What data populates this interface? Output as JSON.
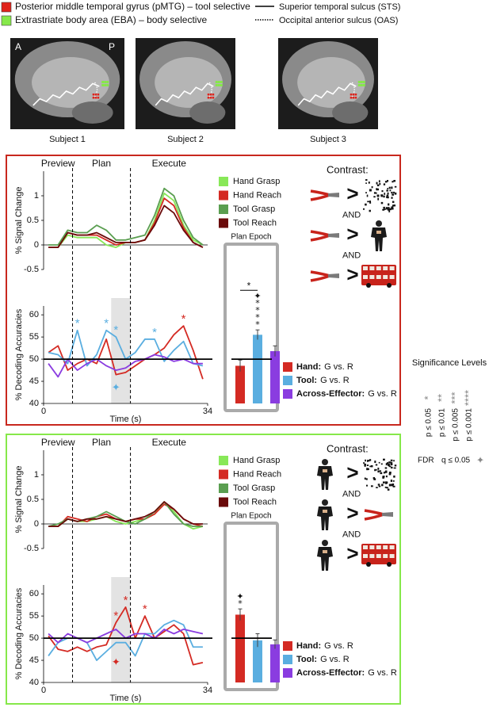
{
  "legend": {
    "regions": [
      {
        "label": "Posterior middle temporal gyrus (pMTG) – tool selective",
        "color": "#e0231b"
      },
      {
        "label": "Extrastriate body area (EBA) – body selective",
        "color": "#86e84a"
      }
    ],
    "sulci": [
      {
        "label": "Superior temporal sulcus (STS)",
        "style": "solid"
      },
      {
        "label": "Occipital anterior sulcus (OAS)",
        "style": "dotted"
      }
    ]
  },
  "brains": {
    "orientation": [
      "A",
      "P"
    ],
    "subjects": [
      "Subject 1",
      "Subject 2",
      "Subject 3"
    ]
  },
  "panels": [
    {
      "border_color": "#c8281e",
      "phases": [
        "Preview",
        "Plan",
        "Execute"
      ],
      "contrast_title": "Contrast:",
      "operators": [
        ">",
        ">",
        ">"
      ],
      "joiners": [
        "AND",
        "AND"
      ]
    },
    {
      "border_color": "#86e84a",
      "phases": [
        "Preview",
        "Plan",
        "Execute"
      ],
      "contrast_title": "Contrast:",
      "operators": [
        ">",
        ">",
        ">"
      ],
      "joiners": [
        "AND",
        "AND"
      ]
    }
  ],
  "chart_data": [
    {
      "type": "line",
      "ylabel": "% Signal Change",
      "x": [
        1,
        3,
        5,
        7,
        9,
        11,
        13,
        15,
        17,
        19,
        21,
        23,
        25,
        27,
        29,
        31,
        33
      ],
      "xlim": [
        0,
        34
      ],
      "ylim": [
        -0.5,
        1.5
      ],
      "yticks": [
        -0.5,
        0,
        0.5,
        1
      ],
      "phase_bounds": [
        6,
        18
      ],
      "series": [
        {
          "name": "Hand Grasp",
          "color": "#88e858",
          "values": [
            -0.05,
            -0.05,
            0.2,
            0.15,
            0.15,
            0.15,
            0.0,
            -0.05,
            0.05,
            0.05,
            0.1,
            0.5,
            1.05,
            0.9,
            0.4,
            0.1,
            0.0
          ]
        },
        {
          "name": "Hand Reach",
          "color": "#d42a23",
          "values": [
            -0.05,
            -0.05,
            0.25,
            0.2,
            0.2,
            0.2,
            0.1,
            0.0,
            0.05,
            0.05,
            0.1,
            0.45,
            0.95,
            0.8,
            0.35,
            0.05,
            -0.05
          ]
        },
        {
          "name": "Tool Grasp",
          "color": "#5a9e50",
          "values": [
            0,
            0,
            0.3,
            0.25,
            0.25,
            0.4,
            0.3,
            0.1,
            0.1,
            0.15,
            0.2,
            0.6,
            1.15,
            1.0,
            0.5,
            0.15,
            0.0
          ]
        },
        {
          "name": "Tool Reach",
          "color": "#6a0a0a",
          "values": [
            -0.05,
            -0.05,
            0.25,
            0.2,
            0.2,
            0.25,
            0.15,
            0.05,
            0.05,
            0.05,
            0.1,
            0.4,
            0.8,
            0.65,
            0.3,
            0.05,
            -0.05
          ]
        }
      ]
    },
    {
      "type": "line",
      "ylabel": "% Decoding Accuracies",
      "xlabel": "Time (s)",
      "x": [
        1,
        3,
        5,
        7,
        9,
        11,
        13,
        15,
        17,
        19,
        21,
        23,
        25,
        27,
        29,
        31,
        33
      ],
      "xlim": [
        0,
        34
      ],
      "xticks": [
        0,
        34
      ],
      "ylim": [
        40,
        62
      ],
      "yticks": [
        40,
        45,
        50,
        55,
        60
      ],
      "chance": 50,
      "shade": [
        14,
        18
      ],
      "series": [
        {
          "name": "Hand",
          "color": "#d42a23",
          "values": [
            51.5,
            53,
            47.5,
            49,
            50,
            49,
            54.5,
            46.5,
            47,
            48.5,
            50,
            51,
            52.5,
            55.5,
            57.5,
            52,
            45.5
          ]
        },
        {
          "name": "Tool",
          "color": "#5aaee0",
          "values": [
            51.5,
            51,
            49,
            56.5,
            48.5,
            51,
            56.5,
            55,
            50,
            51.5,
            54.5,
            54.5,
            49.5,
            52,
            54,
            49,
            48.5
          ]
        },
        {
          "name": "Across-Effector",
          "color": "#8a3ce0",
          "values": [
            49,
            46,
            50,
            47.5,
            49,
            50,
            48.5,
            47.5,
            48,
            49.5,
            50,
            51,
            50.5,
            49.5,
            50,
            49,
            49
          ]
        }
      ],
      "stars": [
        {
          "series": 1,
          "index": 3,
          "text": "*"
        },
        {
          "series": 1,
          "index": 6,
          "text": "*"
        },
        {
          "series": 1,
          "index": 7,
          "text": "*"
        },
        {
          "series": 1,
          "index": 11,
          "text": "*"
        },
        {
          "series": 0,
          "index": 14,
          "text": "*"
        }
      ],
      "fdr": [
        {
          "x": 15,
          "y": 43.5,
          "text": "✦",
          "series": 1
        }
      ]
    },
    {
      "type": "bar",
      "title": "Plan Epoch",
      "ylim": [
        40,
        62
      ],
      "chance": 50,
      "values": [
        48.5,
        55.5,
        51.8
      ],
      "errors": [
        1.3,
        1.1,
        1.2
      ],
      "colors": [
        "#d42a23",
        "#5aaee0",
        "#8a3ce0"
      ],
      "legend": [
        {
          "name": "Hand:",
          "detail": "G vs. R"
        },
        {
          "name": "Tool:",
          "detail": "G vs. R"
        },
        {
          "name": "Across-Effector:",
          "detail": "G vs. R"
        }
      ],
      "bracket": {
        "from": 0,
        "to": 1,
        "text": "*"
      },
      "symbols": [
        {
          "bar": 1,
          "texts": [
            "✦",
            "*",
            "*",
            "*",
            "*"
          ]
        }
      ]
    },
    {
      "type": "line",
      "ylabel": "% Signal Change",
      "x": [
        1,
        3,
        5,
        7,
        9,
        11,
        13,
        15,
        17,
        19,
        21,
        23,
        25,
        27,
        29,
        31,
        33
      ],
      "xlim": [
        0,
        34
      ],
      "ylim": [
        -0.5,
        1.5
      ],
      "yticks": [
        -0.5,
        0,
        0.5,
        1
      ],
      "phase_bounds": [
        6,
        18
      ],
      "series": [
        {
          "name": "Hand Grasp",
          "color": "#88e858",
          "values": [
            -0.05,
            -0.05,
            0.1,
            0.05,
            0.05,
            0.1,
            0.15,
            0.05,
            0.0,
            0.05,
            0.1,
            0.2,
            0.45,
            0.25,
            0.0,
            -0.1,
            -0.05
          ]
        },
        {
          "name": "Hand Reach",
          "color": "#d42a23",
          "values": [
            -0.05,
            -0.05,
            0.15,
            0.1,
            0.05,
            0.15,
            0.2,
            0.1,
            0.05,
            0.1,
            0.1,
            0.2,
            0.4,
            0.3,
            0.1,
            0.0,
            -0.05
          ]
        },
        {
          "name": "Tool Grasp",
          "color": "#5a9e50",
          "values": [
            -0.05,
            0,
            0.1,
            0.05,
            0.1,
            0.15,
            0.25,
            0.15,
            0.05,
            0.0,
            0.1,
            0.25,
            0.45,
            0.2,
            0.0,
            -0.05,
            -0.05
          ]
        },
        {
          "name": "Tool Reach",
          "color": "#6a0a0a",
          "values": [
            -0.05,
            -0.05,
            0.1,
            0.05,
            0.1,
            0.1,
            0.15,
            0.1,
            0.05,
            0.1,
            0.15,
            0.25,
            0.45,
            0.3,
            0.1,
            0.0,
            0.0
          ]
        }
      ]
    },
    {
      "type": "line",
      "ylabel": "% Decoding Accuracies",
      "xlabel": "Time (s)",
      "x": [
        1,
        3,
        5,
        7,
        9,
        11,
        13,
        15,
        17,
        19,
        21,
        23,
        25,
        27,
        29,
        31,
        33
      ],
      "xlim": [
        0,
        34
      ],
      "xticks": [
        0,
        34
      ],
      "ylim": [
        40,
        62
      ],
      "yticks": [
        40,
        45,
        50,
        55,
        60
      ],
      "chance": 50,
      "shade": [
        14,
        18
      ],
      "series": [
        {
          "name": "Hand",
          "color": "#d42a23",
          "values": [
            50.5,
            47.5,
            47,
            48,
            47,
            48,
            48.5,
            53.5,
            57,
            50,
            55,
            50,
            51.5,
            53,
            51,
            44,
            44.5
          ]
        },
        {
          "name": "Tool",
          "color": "#5aaee0",
          "values": [
            46,
            49,
            50,
            50,
            49,
            45,
            47,
            49,
            49,
            46,
            51,
            51,
            53,
            54,
            53,
            48,
            48
          ]
        },
        {
          "name": "Across-Effector",
          "color": "#8a3ce0",
          "values": [
            51,
            49,
            51,
            50,
            49,
            50,
            51,
            52,
            50,
            51,
            51,
            50,
            52,
            51,
            52,
            51.5,
            51
          ]
        }
      ],
      "stars": [
        {
          "series": 0,
          "index": 7,
          "text": "*"
        },
        {
          "series": 0,
          "index": 8,
          "text": "*"
        },
        {
          "series": 0,
          "index": 10,
          "text": "*"
        }
      ],
      "fdr": [
        {
          "x": 15,
          "y": 44.5,
          "text": "✦",
          "series": 0
        }
      ]
    },
    {
      "type": "bar",
      "title": "Plan Epoch",
      "ylim": [
        40,
        62
      ],
      "chance": 50,
      "values": [
        55.3,
        49.5,
        48.6
      ],
      "errors": [
        1.3,
        1.5,
        1.0
      ],
      "colors": [
        "#d42a23",
        "#5aaee0",
        "#8a3ce0"
      ],
      "legend": [
        {
          "name": "Hand:",
          "detail": "G vs. R"
        },
        {
          "name": "Tool:",
          "detail": "G vs. R"
        },
        {
          "name": "Across-Effector:",
          "detail": "G vs. R"
        }
      ],
      "symbols": [
        {
          "bar": 0,
          "texts": [
            "✦",
            "*"
          ]
        }
      ]
    }
  ],
  "significance": {
    "title": "Significance Levels",
    "color": "#888888",
    "levels": [
      {
        "stars": "*",
        "label": "p ≤ 0.05"
      },
      {
        "stars": "**",
        "label": "p ≤ 0.01"
      },
      {
        "stars": "***",
        "label": "p ≤ 0.005"
      },
      {
        "stars": "****",
        "label": "p ≤ 0.001"
      }
    ],
    "fdr": {
      "label": "FDR",
      "q": "q ≤ 0.05",
      "symbol": "✦"
    }
  }
}
